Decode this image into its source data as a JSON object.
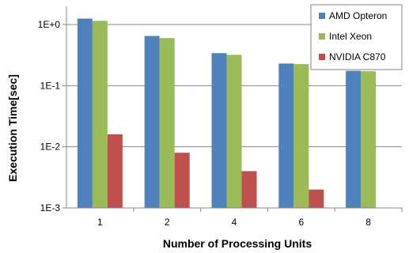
{
  "chart_data": {
    "type": "bar",
    "xlabel": "Number of Processing Units",
    "ylabel": "Execution Time[sec]",
    "yscale": "log",
    "ylim": [
      0.001,
      2
    ],
    "yticks": [
      {
        "value": 1,
        "label": "1E+0"
      },
      {
        "value": 0.1,
        "label": "1E-1"
      },
      {
        "value": 0.01,
        "label": "1E-2"
      },
      {
        "value": 0.001,
        "label": "1E-3"
      }
    ],
    "categories": [
      "1",
      "2",
      "4",
      "6",
      "8"
    ],
    "series": [
      {
        "name": "AMD Opteron",
        "color": "#4f81bd",
        "values": [
          1.25,
          0.65,
          0.34,
          0.23,
          0.175
        ]
      },
      {
        "name": "Intel Xeon",
        "color": "#9bbb59",
        "values": [
          1.15,
          0.6,
          0.32,
          0.225,
          0.172
        ]
      },
      {
        "name": "NVIDIA C870",
        "color": "#c0504d",
        "values": [
          0.016,
          0.008,
          0.004,
          0.002,
          null
        ]
      }
    ],
    "grid": "horizontal",
    "legend_position": "top-right"
  }
}
